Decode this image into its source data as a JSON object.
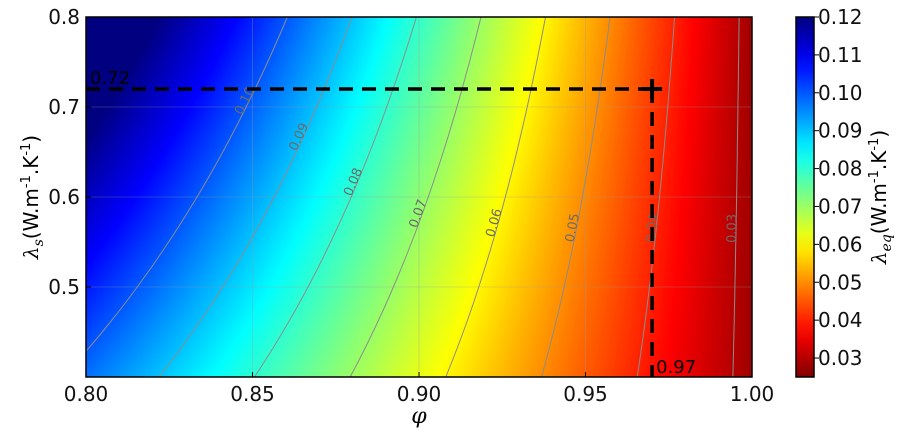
{
  "chart_data": {
    "type": "heatmap",
    "title": "",
    "xlabel": "φ",
    "ylabel": "λ_s(W.m⁻¹.K⁻¹)",
    "ylabel_parts": {
      "symbol": "λ",
      "sub": "s",
      "unit": "(W.m",
      "exp1": "-1",
      "mid": ".K",
      "exp2": "-1",
      "close": ")"
    },
    "xlim": [
      0.8,
      1.0
    ],
    "ylim": [
      0.4,
      0.8
    ],
    "xticks": [
      {
        "value": 0.8,
        "label": "0.80"
      },
      {
        "value": 0.85,
        "label": "0.85"
      },
      {
        "value": 0.9,
        "label": "0.90"
      },
      {
        "value": 0.95,
        "label": "0.95"
      },
      {
        "value": 1.0,
        "label": "1.00"
      }
    ],
    "yticks": [
      {
        "value": 0.5,
        "label": "0.5"
      },
      {
        "value": 0.6,
        "label": "0.6"
      },
      {
        "value": 0.7,
        "label": "0.7"
      },
      {
        "value": 0.8,
        "label": "0.8"
      }
    ],
    "grid": true,
    "colorbar": {
      "label_parts": {
        "symbol": "λ",
        "sub": "eq",
        "unit": "(W.m",
        "exp1": "-1",
        "mid": ".K",
        "exp2": "-1",
        "close": ")"
      },
      "range": [
        0.025,
        0.12
      ],
      "colormap": "jet_r",
      "ticks": [
        {
          "value": 0.12,
          "label": "0.12"
        },
        {
          "value": 0.11,
          "label": "0.11"
        },
        {
          "value": 0.1,
          "label": "0.10"
        },
        {
          "value": 0.09,
          "label": "0.09"
        },
        {
          "value": 0.08,
          "label": "0.08"
        },
        {
          "value": 0.07,
          "label": "0.07"
        },
        {
          "value": 0.06,
          "label": "0.06"
        },
        {
          "value": 0.05,
          "label": "0.05"
        },
        {
          "value": 0.04,
          "label": "0.04"
        },
        {
          "value": 0.03,
          "label": "0.03"
        }
      ]
    },
    "contours": [
      {
        "level": 0.1,
        "label": "0.10"
      },
      {
        "level": 0.09,
        "label": "0.09"
      },
      {
        "level": 0.08,
        "label": "0.08"
      },
      {
        "level": 0.07,
        "label": "0.07"
      },
      {
        "level": 0.06,
        "label": "0.06"
      },
      {
        "level": 0.05,
        "label": "0.05"
      },
      {
        "level": 0.04,
        "label": "0.04"
      },
      {
        "level": 0.03,
        "label": "0.03"
      }
    ],
    "contour_color": "#8c8c8c",
    "marker": {
      "x": 0.97,
      "y": 0.72,
      "x_label": "0.97",
      "y_label": "0.72"
    }
  }
}
